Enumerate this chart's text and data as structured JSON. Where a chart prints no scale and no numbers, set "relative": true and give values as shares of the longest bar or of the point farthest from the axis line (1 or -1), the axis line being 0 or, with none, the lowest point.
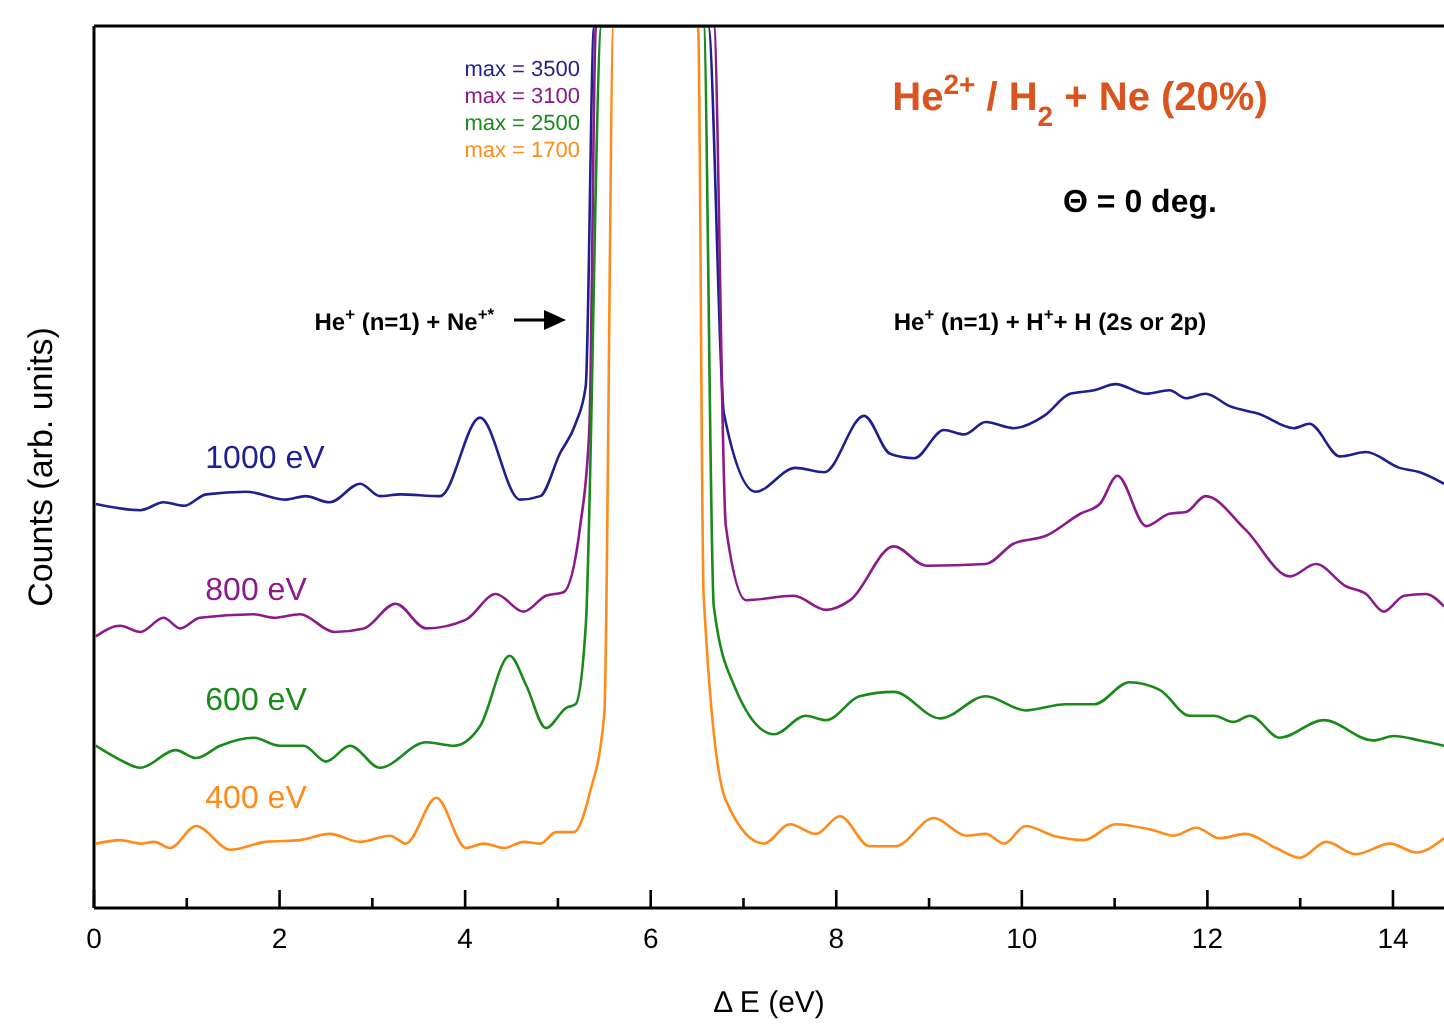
{
  "chart_data": {
    "type": "line",
    "title": "He$^{2+}$ / H$_{2}$ + Ne (20%)",
    "xlabel": "Δ E (eV)",
    "ylabel": "Counts (arb. units)",
    "relative": true,
    "xlim": [
      0,
      14.55
    ],
    "xticks": [
      0,
      {
        "value": 1,
        "label": null
      },
      2,
      {
        "value": 3,
        "label": null
      },
      4,
      {
        "value": 5,
        "label": null
      },
      6,
      {
        "value": 7,
        "label": null
      },
      8,
      {
        "value": 9,
        "label": null
      },
      10,
      {
        "value": 11,
        "label": null
      },
      12,
      {
        "value": 13,
        "label": null
      },
      14
    ],
    "grid": false,
    "line_style": "solid",
    "annotations": [
      "max = 3500",
      "max = 3100",
      "max = 2500",
      "max = 1700",
      "Θ = 0 deg.",
      "He$^{+}$ (n=1) + Ne$^{+*}$",
      "He$^{+}$ (n=1) + H$^{+}$+ H (2s or 2p)"
    ],
    "series": [
      {
        "name": "1000 eV",
        "color": "#1f1f8f",
        "x": [
          0.02,
          0.5,
          0.75,
          0.97,
          1.21,
          1.64,
          2.07,
          2.28,
          2.54,
          2.87,
          3.08,
          3.3,
          3.73,
          4.16,
          4.59,
          4.81,
          5.02,
          5.19,
          5.3,
          5.39,
          6.62,
          6.79,
          7.13,
          7.56,
          7.87,
          8.3,
          8.58,
          8.84,
          9.16,
          9.38,
          9.61,
          9.91,
          10.24,
          10.52,
          10.78,
          11.01,
          11.34,
          11.59,
          11.77,
          11.98,
          12.24,
          12.56,
          12.93,
          13.1,
          13.43,
          13.71,
          14.07,
          14.29,
          14.55
        ],
        "values": [
          0.458,
          0.451,
          0.46,
          0.456,
          0.469,
          0.472,
          0.463,
          0.467,
          0.46,
          0.481,
          0.467,
          0.469,
          0.467,
          0.556,
          0.463,
          0.467,
          0.515,
          0.549,
          0.592,
          1,
          1,
          0.56,
          0.472,
          0.499,
          0.494,
          0.558,
          0.515,
          0.51,
          0.542,
          0.537,
          0.551,
          0.544,
          0.558,
          0.583,
          0.587,
          0.594,
          0.583,
          0.587,
          0.578,
          0.583,
          0.569,
          0.56,
          0.544,
          0.549,
          0.512,
          0.517,
          0.499,
          0.494,
          0.481
        ]
      },
      {
        "name": "800 eV",
        "color": "#8b1a8b",
        "x": [
          0.02,
          0.28,
          0.5,
          0.75,
          0.93,
          1.14,
          1.72,
          1.94,
          2.22,
          2.59,
          2.91,
          3.25,
          3.58,
          4.01,
          4.33,
          4.63,
          4.87,
          5.06,
          5.24,
          5.34,
          5.41,
          6.68,
          6.81,
          7.03,
          7.54,
          7.89,
          8.15,
          8.62,
          8.97,
          9.61,
          9.91,
          10.26,
          10.63,
          10.84,
          11.03,
          11.34,
          11.59,
          11.77,
          11.98,
          12.41,
          12.89,
          13.17,
          13.49,
          13.71,
          13.9,
          14.12,
          14.35,
          14.55
        ],
        "values": [
          0.308,
          0.32,
          0.313,
          0.329,
          0.317,
          0.329,
          0.333,
          0.329,
          0.333,
          0.313,
          0.317,
          0.345,
          0.317,
          0.327,
          0.356,
          0.336,
          0.354,
          0.358,
          0.433,
          0.546,
          1,
          1,
          0.433,
          0.349,
          0.354,
          0.338,
          0.349,
          0.41,
          0.388,
          0.39,
          0.413,
          0.422,
          0.447,
          0.458,
          0.49,
          0.433,
          0.447,
          0.449,
          0.467,
          0.429,
          0.376,
          0.39,
          0.365,
          0.356,
          0.336,
          0.354,
          0.356,
          0.342
        ]
      },
      {
        "name": "600 eV",
        "color": "#1a8a1a",
        "x": [
          0.02,
          0.28,
          0.5,
          0.88,
          1.1,
          1.36,
          1.72,
          2.0,
          2.26,
          2.5,
          2.76,
          3.08,
          3.58,
          3.88,
          4.16,
          4.48,
          4.66,
          4.87,
          5.09,
          5.19,
          5.3,
          5.47,
          6.57,
          6.68,
          6.9,
          7.33,
          7.67,
          7.89,
          8.25,
          8.62,
          9.12,
          9.61,
          10.04,
          10.47,
          10.78,
          11.16,
          11.49,
          11.81,
          12.07,
          12.28,
          12.46,
          12.78,
          13.25,
          13.79,
          14.01,
          14.29,
          14.55
        ],
        "values": [
          0.184,
          0.168,
          0.159,
          0.179,
          0.17,
          0.184,
          0.193,
          0.184,
          0.184,
          0.166,
          0.184,
          0.159,
          0.188,
          0.184,
          0.206,
          0.286,
          0.252,
          0.204,
          0.227,
          0.231,
          0.32,
          1,
          1,
          0.342,
          0.252,
          0.197,
          0.218,
          0.213,
          0.24,
          0.245,
          0.215,
          0.24,
          0.224,
          0.231,
          0.231,
          0.256,
          0.247,
          0.218,
          0.218,
          0.211,
          0.218,
          0.193,
          0.213,
          0.19,
          0.195,
          0.19,
          0.184
        ]
      },
      {
        "name": "400 eV",
        "color": "#ff8c1a",
        "x": [
          0.02,
          0.28,
          0.5,
          0.65,
          0.82,
          1.1,
          1.47,
          1.85,
          2.22,
          2.54,
          2.87,
          3.19,
          3.36,
          3.69,
          4.01,
          4.2,
          4.42,
          4.63,
          4.81,
          4.98,
          5.17,
          5.34,
          5.5,
          5.6,
          6.51,
          6.57,
          6.81,
          7.22,
          7.5,
          7.78,
          8.04,
          8.36,
          8.64,
          9.05,
          9.4,
          9.61,
          9.81,
          10.04,
          10.34,
          10.67,
          11.01,
          11.42,
          11.64,
          11.88,
          12.13,
          12.41,
          12.74,
          13.0,
          13.28,
          13.6,
          13.97,
          14.25,
          14.55
        ],
        "values": [
          0.073,
          0.077,
          0.073,
          0.075,
          0.068,
          0.093,
          0.066,
          0.075,
          0.077,
          0.084,
          0.075,
          0.082,
          0.073,
          0.125,
          0.068,
          0.073,
          0.068,
          0.075,
          0.073,
          0.086,
          0.086,
          0.129,
          0.22,
          1,
          1,
          0.356,
          0.122,
          0.073,
          0.095,
          0.084,
          0.104,
          0.07,
          0.07,
          0.102,
          0.082,
          0.084,
          0.073,
          0.093,
          0.082,
          0.077,
          0.095,
          0.088,
          0.082,
          0.091,
          0.079,
          0.084,
          0.068,
          0.057,
          0.075,
          0.061,
          0.073,
          0.063,
          0.079
        ]
      }
    ]
  }
}
